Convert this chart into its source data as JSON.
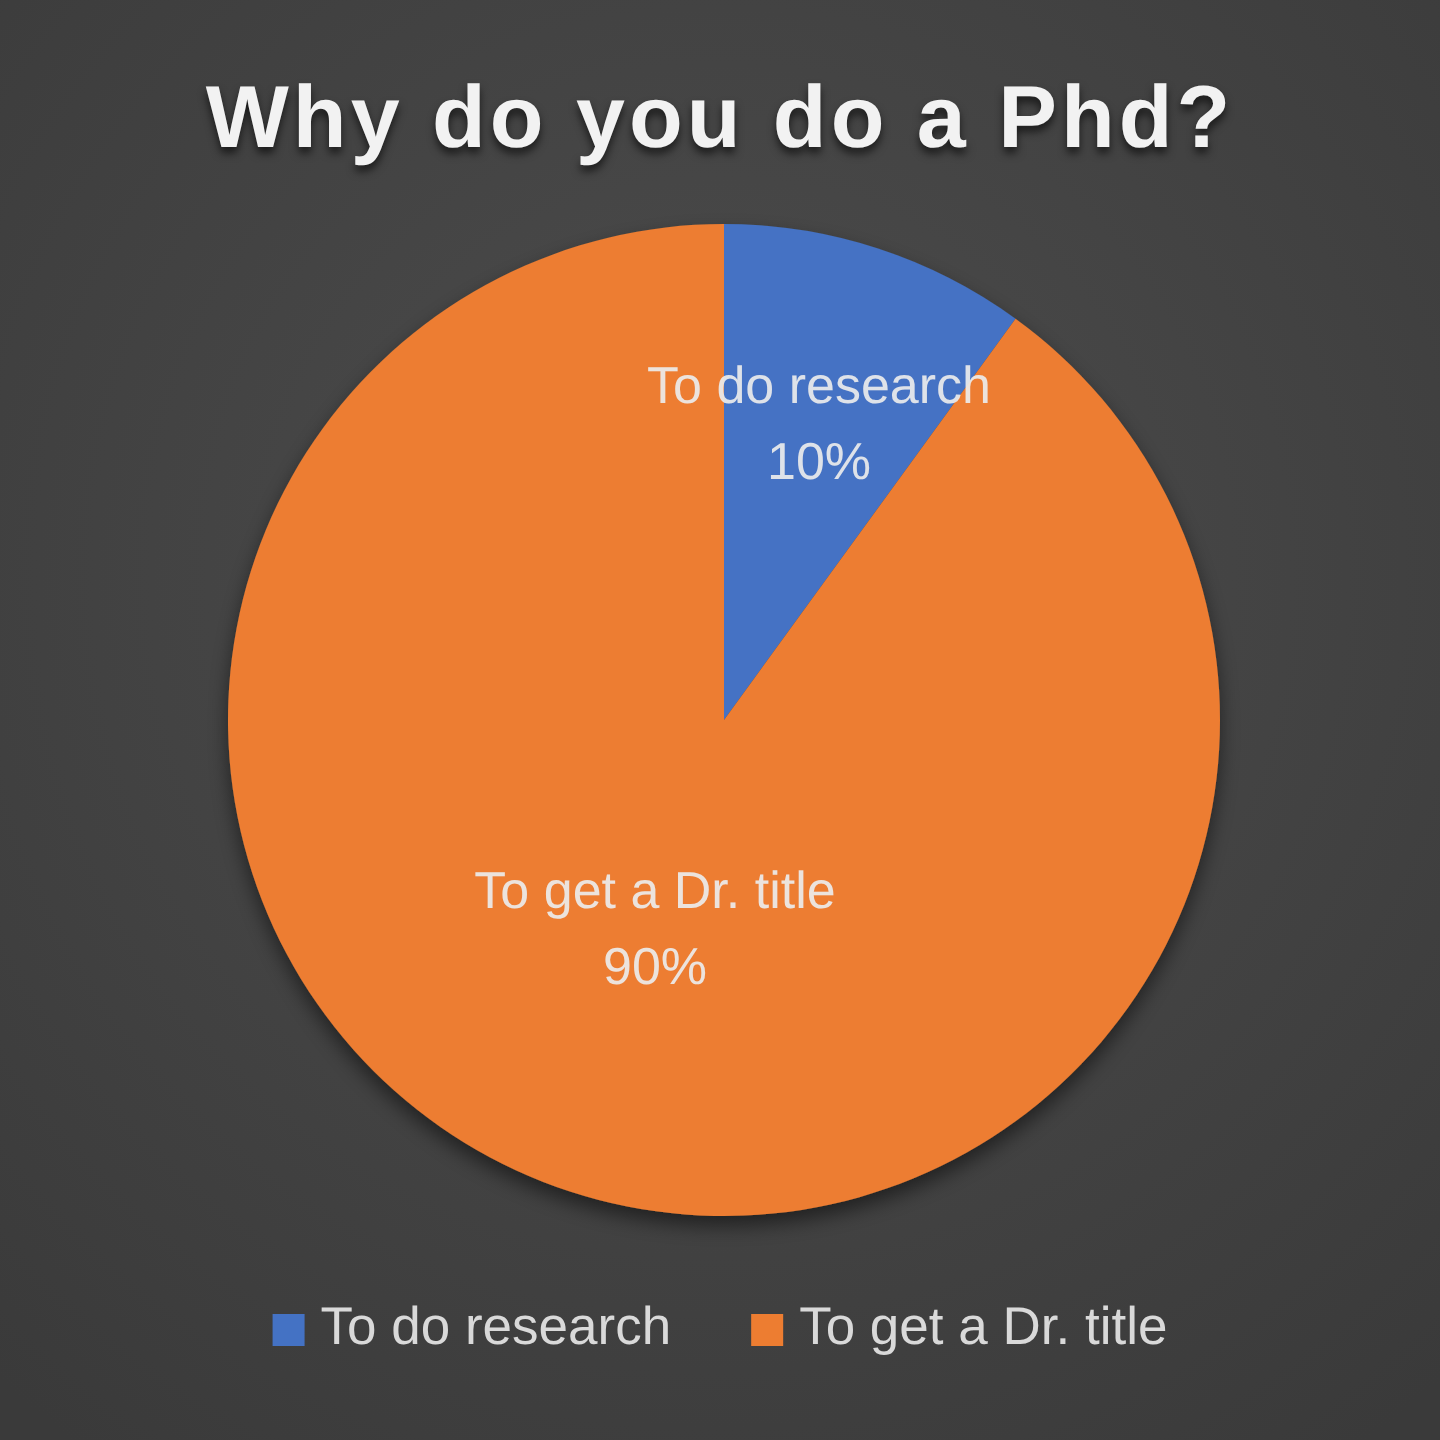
{
  "chart_data": {
    "type": "pie",
    "title": "Why do you do a Phd?",
    "categories": [
      "To do research",
      "To get a Dr. title"
    ],
    "values": [
      10,
      90
    ],
    "value_labels": [
      "10%",
      "90%"
    ],
    "colors": [
      "#4472c4",
      "#ed7d31"
    ],
    "legend": "bottom"
  }
}
